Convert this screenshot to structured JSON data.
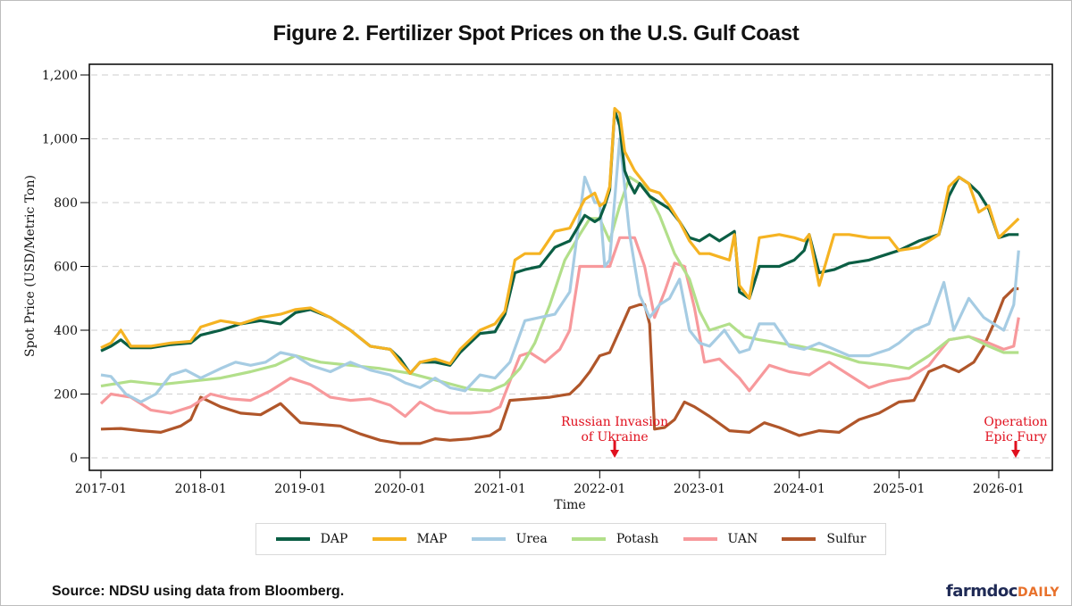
{
  "title": "Figure 2. Fertilizer Spot Prices on the U.S. Gulf Coast",
  "source": "Source: NDSU using data from Bloomberg.",
  "brand": {
    "part1": "farmdoc",
    "part2": "DAILY"
  },
  "chart_data": {
    "type": "line",
    "title": "Figure 2. Fertilizer Spot Prices on the U.S. Gulf Coast",
    "xlabel": "Time",
    "ylabel": "Spot Price (USD/Metric Ton)",
    "ylim": [
      0,
      1200
    ],
    "xlim": [
      2016.94,
      2026.55
    ],
    "grid": "horizontal dashed",
    "legend_position": "bottom",
    "y_ticks": [
      {
        "value": 0,
        "label": "0"
      },
      {
        "value": 200,
        "label": "200"
      },
      {
        "value": 400,
        "label": "400"
      },
      {
        "value": 600,
        "label": "600"
      },
      {
        "value": 800,
        "label": "800"
      },
      {
        "value": 1000,
        "label": "1,000"
      },
      {
        "value": 1200,
        "label": "1,200"
      }
    ],
    "x_ticks": [
      {
        "value": 2017,
        "label": "2017-01"
      },
      {
        "value": 2018,
        "label": "2018-01"
      },
      {
        "value": 2019,
        "label": "2019-01"
      },
      {
        "value": 2020,
        "label": "2020-01"
      },
      {
        "value": 2021,
        "label": "2021-01"
      },
      {
        "value": 2022,
        "label": "2022-01"
      },
      {
        "value": 2023,
        "label": "2023-01"
      },
      {
        "value": 2024,
        "label": "2024-01"
      },
      {
        "value": 2025,
        "label": "2025-01"
      },
      {
        "value": 2026,
        "label": "2026-01"
      }
    ],
    "annotations": [
      {
        "text_lines": [
          "Russian Invasion",
          "of Ukraine"
        ],
        "x": 2022.15,
        "color": "#e0101e"
      },
      {
        "text_lines": [
          "Operation",
          "Epic Fury"
        ],
        "x": 2026.17,
        "color": "#e0101e"
      }
    ],
    "series": [
      {
        "name": "DAP",
        "color": "#0b5e44",
        "x": [
          2017.0,
          2017.1,
          2017.2,
          2017.3,
          2017.5,
          2017.7,
          2017.9,
          2018.0,
          2018.2,
          2018.4,
          2018.6,
          2018.8,
          2018.95,
          2019.1,
          2019.3,
          2019.5,
          2019.7,
          2019.9,
          2020.0,
          2020.1,
          2020.2,
          2020.35,
          2020.5,
          2020.6,
          2020.8,
          2020.95,
          2021.05,
          2021.15,
          2021.25,
          2021.4,
          2021.55,
          2021.7,
          2021.85,
          2021.95,
          2022.0,
          2022.05,
          2022.1,
          2022.15,
          2022.2,
          2022.25,
          2022.3,
          2022.35,
          2022.4,
          2022.5,
          2022.6,
          2022.7,
          2022.8,
          2022.9,
          2023.0,
          2023.1,
          2023.2,
          2023.3,
          2023.35,
          2023.4,
          2023.5,
          2023.6,
          2023.8,
          2023.95,
          2024.05,
          2024.1,
          2024.2,
          2024.35,
          2024.5,
          2024.7,
          2024.9,
          2025.0,
          2025.2,
          2025.4,
          2025.5,
          2025.6,
          2025.7,
          2025.8,
          2025.9,
          2026.0,
          2026.1,
          2026.2
        ],
        "values": [
          335,
          350,
          370,
          345,
          345,
          355,
          360,
          385,
          400,
          420,
          430,
          420,
          455,
          465,
          440,
          400,
          350,
          340,
          310,
          265,
          300,
          300,
          290,
          330,
          390,
          395,
          450,
          580,
          590,
          600,
          660,
          680,
          760,
          740,
          750,
          790,
          840,
          1090,
          1040,
          900,
          860,
          830,
          860,
          820,
          800,
          780,
          740,
          690,
          680,
          700,
          680,
          700,
          710,
          520,
          500,
          600,
          600,
          620,
          650,
          700,
          580,
          590,
          610,
          620,
          640,
          650,
          680,
          700,
          820,
          880,
          860,
          830,
          780,
          690,
          700,
          700
        ]
      },
      {
        "name": "MAP",
        "color": "#f5b322",
        "x": [
          2017.0,
          2017.1,
          2017.2,
          2017.3,
          2017.5,
          2017.7,
          2017.9,
          2018.0,
          2018.2,
          2018.4,
          2018.6,
          2018.8,
          2018.95,
          2019.1,
          2019.3,
          2019.5,
          2019.7,
          2019.9,
          2020.0,
          2020.1,
          2020.2,
          2020.35,
          2020.5,
          2020.6,
          2020.8,
          2020.95,
          2021.05,
          2021.15,
          2021.25,
          2021.4,
          2021.55,
          2021.7,
          2021.85,
          2021.95,
          2022.0,
          2022.05,
          2022.1,
          2022.15,
          2022.2,
          2022.25,
          2022.3,
          2022.35,
          2022.4,
          2022.5,
          2022.6,
          2022.7,
          2022.8,
          2022.9,
          2023.0,
          2023.1,
          2023.2,
          2023.3,
          2023.35,
          2023.4,
          2023.5,
          2023.6,
          2023.8,
          2023.95,
          2024.05,
          2024.1,
          2024.2,
          2024.35,
          2024.5,
          2024.7,
          2024.9,
          2025.0,
          2025.2,
          2025.4,
          2025.5,
          2025.6,
          2025.7,
          2025.8,
          2025.9,
          2026.0,
          2026.1,
          2026.2
        ],
        "values": [
          345,
          360,
          400,
          350,
          350,
          360,
          365,
          410,
          430,
          420,
          440,
          450,
          465,
          470,
          440,
          400,
          350,
          340,
          300,
          265,
          300,
          310,
          295,
          340,
          400,
          420,
          460,
          620,
          640,
          640,
          710,
          720,
          810,
          830,
          790,
          800,
          850,
          1095,
          1080,
          960,
          930,
          900,
          880,
          840,
          830,
          790,
          740,
          680,
          640,
          640,
          630,
          620,
          700,
          540,
          500,
          690,
          700,
          690,
          680,
          700,
          540,
          700,
          700,
          690,
          690,
          650,
          660,
          700,
          850,
          880,
          860,
          770,
          790,
          690,
          720,
          750
        ]
      },
      {
        "name": "Urea",
        "color": "#a6cce3",
        "x": [
          2017.0,
          2017.1,
          2017.25,
          2017.4,
          2017.55,
          2017.7,
          2017.85,
          2018.0,
          2018.2,
          2018.35,
          2018.5,
          2018.65,
          2018.8,
          2018.95,
          2019.1,
          2019.3,
          2019.5,
          2019.7,
          2019.9,
          2020.05,
          2020.2,
          2020.35,
          2020.5,
          2020.65,
          2020.8,
          2020.95,
          2021.1,
          2021.25,
          2021.4,
          2021.55,
          2021.7,
          2021.85,
          2021.95,
          2022.0,
          2022.05,
          2022.1,
          2022.2,
          2022.3,
          2022.4,
          2022.5,
          2022.6,
          2022.7,
          2022.8,
          2022.9,
          2023.0,
          2023.1,
          2023.25,
          2023.4,
          2023.5,
          2023.6,
          2023.75,
          2023.9,
          2024.05,
          2024.2,
          2024.35,
          2024.5,
          2024.7,
          2024.9,
          2025.0,
          2025.15,
          2025.3,
          2025.45,
          2025.55,
          2025.7,
          2025.85,
          2025.95,
          2026.05,
          2026.15,
          2026.2
        ],
        "values": [
          260,
          255,
          200,
          175,
          200,
          260,
          275,
          250,
          280,
          300,
          290,
          300,
          330,
          320,
          290,
          270,
          300,
          275,
          260,
          235,
          220,
          250,
          220,
          210,
          260,
          250,
          300,
          430,
          440,
          450,
          520,
          880,
          800,
          800,
          600,
          620,
          1000,
          700,
          510,
          440,
          480,
          500,
          560,
          400,
          360,
          350,
          400,
          330,
          340,
          420,
          420,
          350,
          340,
          360,
          340,
          320,
          320,
          340,
          360,
          400,
          420,
          550,
          400,
          500,
          440,
          420,
          400,
          480,
          650
        ]
      },
      {
        "name": "Potash",
        "color": "#b2df8a",
        "x": [
          2017.0,
          2017.3,
          2017.6,
          2017.9,
          2018.2,
          2018.5,
          2018.75,
          2018.95,
          2019.2,
          2019.5,
          2019.8,
          2020.1,
          2020.4,
          2020.7,
          2020.9,
          2021.05,
          2021.2,
          2021.35,
          2021.5,
          2021.65,
          2021.8,
          2021.9,
          2022.0,
          2022.1,
          2022.2,
          2022.3,
          2022.45,
          2022.6,
          2022.75,
          2022.9,
          2023.0,
          2023.1,
          2023.3,
          2023.45,
          2023.6,
          2023.8,
          2024.0,
          2024.3,
          2024.6,
          2024.9,
          2025.1,
          2025.3,
          2025.5,
          2025.7,
          2025.9,
          2026.05,
          2026.2
        ],
        "values": [
          225,
          240,
          230,
          240,
          250,
          270,
          290,
          320,
          300,
          290,
          280,
          265,
          240,
          215,
          210,
          230,
          280,
          360,
          480,
          620,
          700,
          750,
          750,
          680,
          790,
          880,
          850,
          760,
          640,
          560,
          460,
          400,
          420,
          380,
          370,
          360,
          350,
          330,
          300,
          290,
          280,
          320,
          370,
          380,
          350,
          330,
          330
        ]
      },
      {
        "name": "UAN",
        "color": "#f7999c",
        "x": [
          2017.0,
          2017.1,
          2017.3,
          2017.5,
          2017.7,
          2017.9,
          2018.1,
          2018.3,
          2018.5,
          2018.7,
          2018.9,
          2019.1,
          2019.3,
          2019.5,
          2019.7,
          2019.9,
          2020.05,
          2020.2,
          2020.35,
          2020.5,
          2020.7,
          2020.9,
          2021.0,
          2021.1,
          2021.2,
          2021.3,
          2021.45,
          2021.6,
          2021.7,
          2021.8,
          2021.9,
          2022.0,
          2022.1,
          2022.2,
          2022.35,
          2022.45,
          2022.55,
          2022.65,
          2022.75,
          2022.85,
          2022.95,
          2023.05,
          2023.2,
          2023.4,
          2023.5,
          2023.7,
          2023.9,
          2024.1,
          2024.3,
          2024.5,
          2024.7,
          2024.9,
          2025.1,
          2025.3,
          2025.5,
          2025.7,
          2025.9,
          2026.05,
          2026.15,
          2026.2
        ],
        "values": [
          170,
          200,
          190,
          150,
          140,
          160,
          200,
          185,
          180,
          210,
          250,
          230,
          190,
          180,
          185,
          165,
          130,
          175,
          150,
          140,
          140,
          145,
          160,
          240,
          320,
          330,
          300,
          340,
          400,
          600,
          600,
          600,
          600,
          690,
          690,
          600,
          440,
          520,
          610,
          600,
          470,
          300,
          310,
          250,
          210,
          290,
          270,
          260,
          300,
          260,
          220,
          240,
          250,
          290,
          370,
          380,
          360,
          340,
          350,
          440
        ]
      },
      {
        "name": "Sulfur",
        "color": "#b0562a",
        "x": [
          2017.0,
          2017.2,
          2017.4,
          2017.6,
          2017.8,
          2017.9,
          2018.0,
          2018.1,
          2018.2,
          2018.4,
          2018.6,
          2018.8,
          2019.0,
          2019.2,
          2019.4,
          2019.6,
          2019.8,
          2020.0,
          2020.2,
          2020.35,
          2020.5,
          2020.7,
          2020.9,
          2021.0,
          2021.1,
          2021.3,
          2021.5,
          2021.7,
          2021.8,
          2021.9,
          2022.0,
          2022.1,
          2022.2,
          2022.3,
          2022.4,
          2022.45,
          2022.5,
          2022.55,
          2022.65,
          2022.75,
          2022.85,
          2022.95,
          2023.1,
          2023.3,
          2023.5,
          2023.65,
          2023.8,
          2024.0,
          2024.2,
          2024.4,
          2024.6,
          2024.8,
          2025.0,
          2025.15,
          2025.3,
          2025.45,
          2025.6,
          2025.75,
          2025.85,
          2025.95,
          2026.05,
          2026.15,
          2026.2
        ],
        "values": [
          90,
          92,
          85,
          80,
          100,
          120,
          190,
          175,
          160,
          140,
          135,
          170,
          110,
          105,
          100,
          75,
          55,
          45,
          45,
          60,
          55,
          60,
          70,
          90,
          180,
          185,
          190,
          200,
          230,
          270,
          320,
          330,
          400,
          470,
          480,
          480,
          420,
          90,
          95,
          120,
          175,
          160,
          130,
          85,
          80,
          110,
          95,
          70,
          85,
          80,
          120,
          140,
          175,
          180,
          270,
          290,
          270,
          300,
          350,
          420,
          500,
          530,
          530
        ]
      }
    ]
  }
}
